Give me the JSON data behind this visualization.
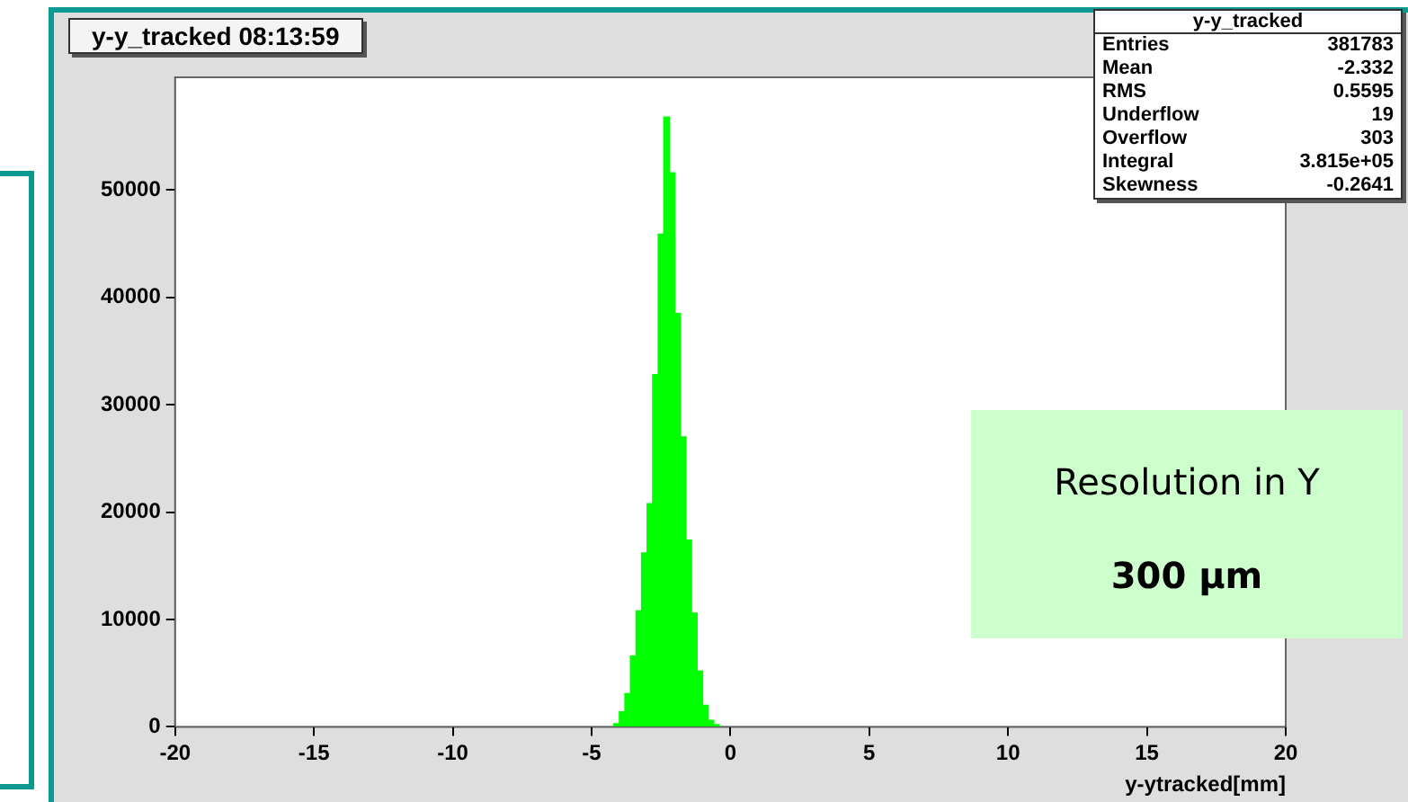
{
  "chart_data": {
    "type": "histogram",
    "title": "y-y_tracked  08:13:59",
    "xlabel": "y-ytracked[mm]",
    "bins": [
      -4.2,
      -4.0,
      -3.8,
      -3.6,
      -3.4,
      -3.2,
      -3.0,
      -2.8,
      -2.6,
      -2.4,
      -2.2,
      -2.0,
      -1.8,
      -1.6,
      -1.4,
      -1.2,
      -1.0,
      -0.8,
      -0.6,
      -0.4
    ],
    "values": [
      300,
      1400,
      3100,
      6600,
      10800,
      16200,
      20800,
      32800,
      45900,
      56800,
      51600,
      38500,
      27000,
      17400,
      10600,
      5200,
      2000,
      600,
      200
    ],
    "color": "#00ff00",
    "xlim": [
      -20,
      20
    ],
    "xticks": [
      -20,
      -15,
      -10,
      -5,
      0,
      5,
      10,
      15,
      20
    ],
    "ylim": [
      0,
      60500
    ],
    "yticks": [
      0,
      10000,
      20000,
      30000,
      40000,
      50000
    ],
    "legend": false,
    "annotations": [
      "y-y_tracked",
      "Entries 381783",
      "Mean -2.332",
      "RMS 0.5595",
      "Underflow 19",
      "Overflow 303",
      "Integral 3.815e+05",
      "Skewness -0.2641",
      "Resolution in Y",
      "300 μm"
    ]
  }
}
